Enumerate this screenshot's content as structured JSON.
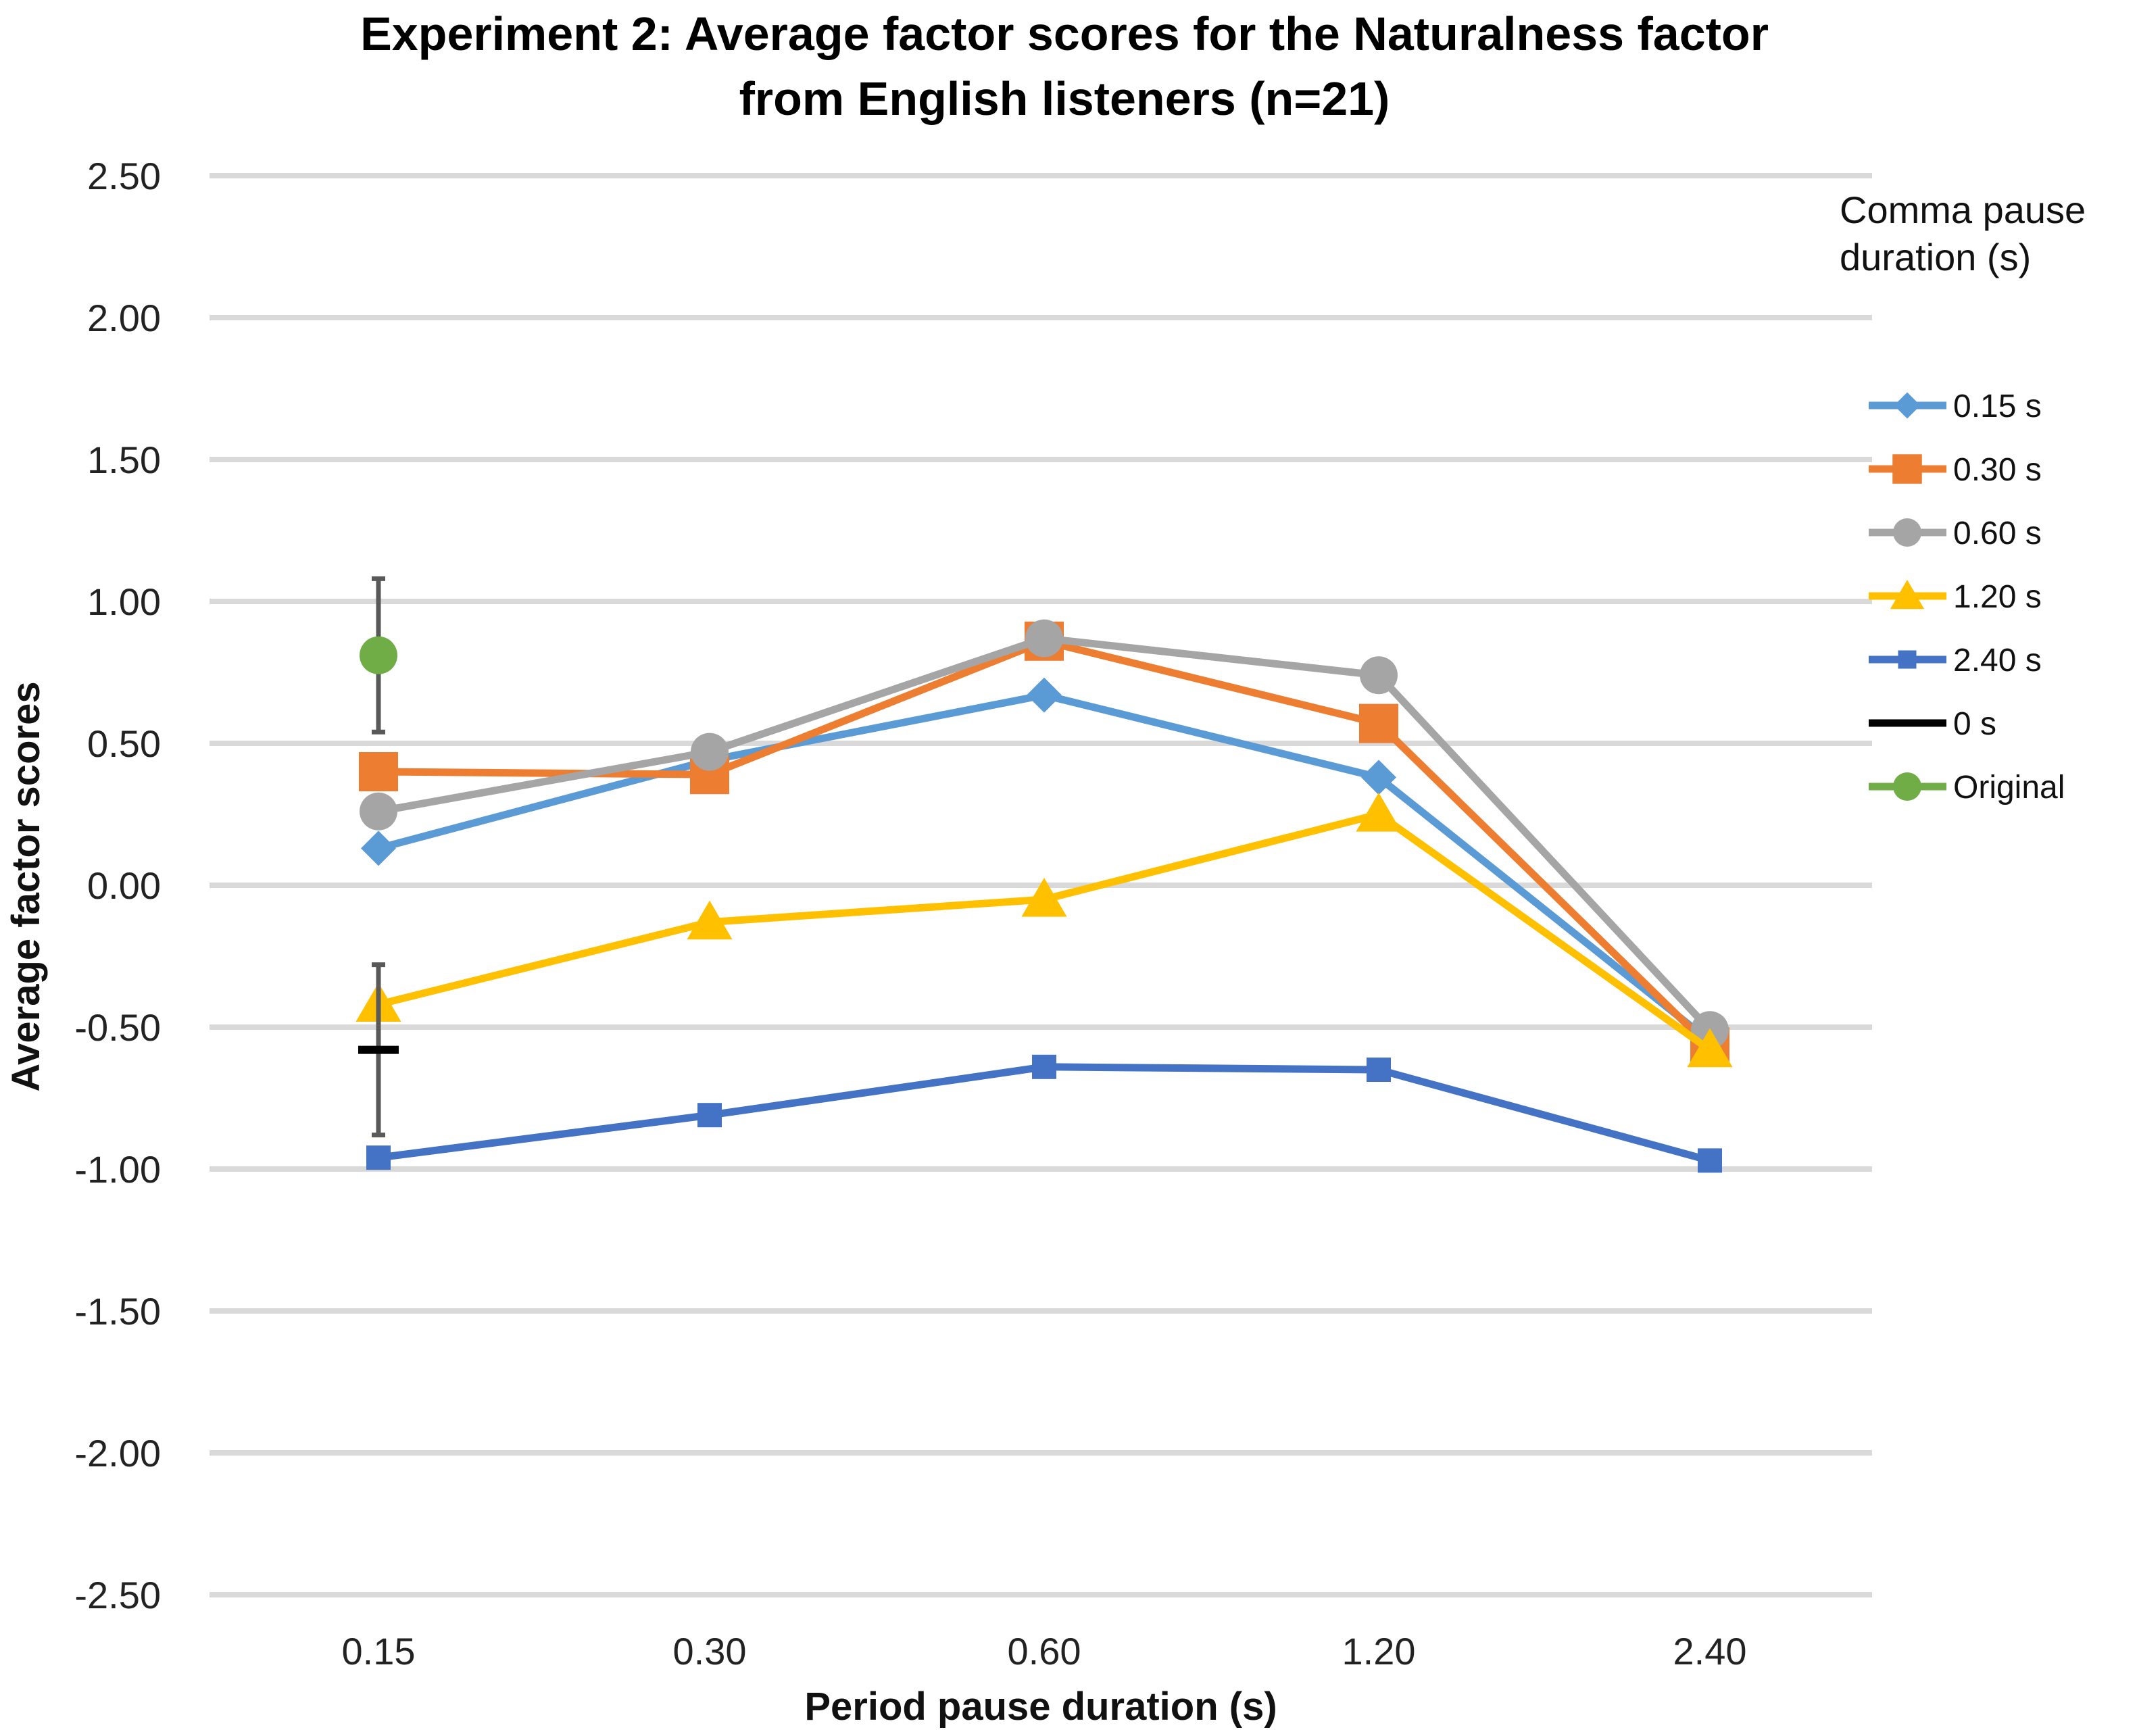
{
  "chart_data": {
    "type": "line",
    "title": [
      "Experiment 2: Average factor scores for the Naturalness factor",
      "from  English listeners (n=21)"
    ],
    "xlabel": "Period pause duration (s)",
    "ylabel": "Average factor scores",
    "categories": [
      "0.15",
      "0.30",
      "0.60",
      "1.20",
      "2.40"
    ],
    "ylim": [
      -2.5,
      2.5
    ],
    "yticks": [
      2.5,
      2.0,
      1.5,
      1.0,
      0.5,
      0.0,
      -0.5,
      -1.0,
      -1.5,
      -2.0,
      -2.5
    ],
    "ytick_labels": [
      "2.50",
      "2.00",
      "1.50",
      "1.00",
      "0.50",
      "0.00",
      "-0.50",
      "-1.00",
      "-1.50",
      "-2.00",
      "-2.50"
    ],
    "grid": true,
    "legend_title": [
      "Comma pause",
      "duration (s)"
    ],
    "legend_position": "right",
    "series": [
      {
        "name": "0.15 s",
        "color": "#5B9BD5",
        "marker": "diamond",
        "values": [
          0.13,
          0.44,
          0.67,
          0.38,
          -0.55
        ]
      },
      {
        "name": "0.30 s",
        "color": "#ED7D31",
        "marker": "square",
        "values": [
          0.4,
          0.39,
          0.86,
          0.57,
          -0.57
        ]
      },
      {
        "name": "0.60 s",
        "color": "#A5A5A5",
        "marker": "circle",
        "values": [
          0.26,
          0.47,
          0.87,
          0.74,
          -0.51
        ]
      },
      {
        "name": "1.20 s",
        "color": "#FFC000",
        "marker": "triangle",
        "values": [
          -0.42,
          -0.13,
          -0.05,
          0.25,
          -0.58
        ]
      },
      {
        "name": "2.40 s",
        "color": "#4472C4",
        "marker": "square-small",
        "values": [
          -0.96,
          -0.81,
          -0.64,
          -0.65,
          -0.97
        ]
      },
      {
        "name": "0 s",
        "color": "#000000",
        "marker": "dash",
        "values": [
          -0.58,
          null,
          null,
          null,
          null
        ],
        "error": [
          0.3,
          null,
          null,
          null,
          null
        ]
      },
      {
        "name": "Original",
        "color": "#70AD47",
        "marker": "circle",
        "values": [
          0.81,
          null,
          null,
          null,
          null
        ],
        "error": [
          0.27,
          null,
          null,
          null,
          null
        ]
      }
    ]
  }
}
